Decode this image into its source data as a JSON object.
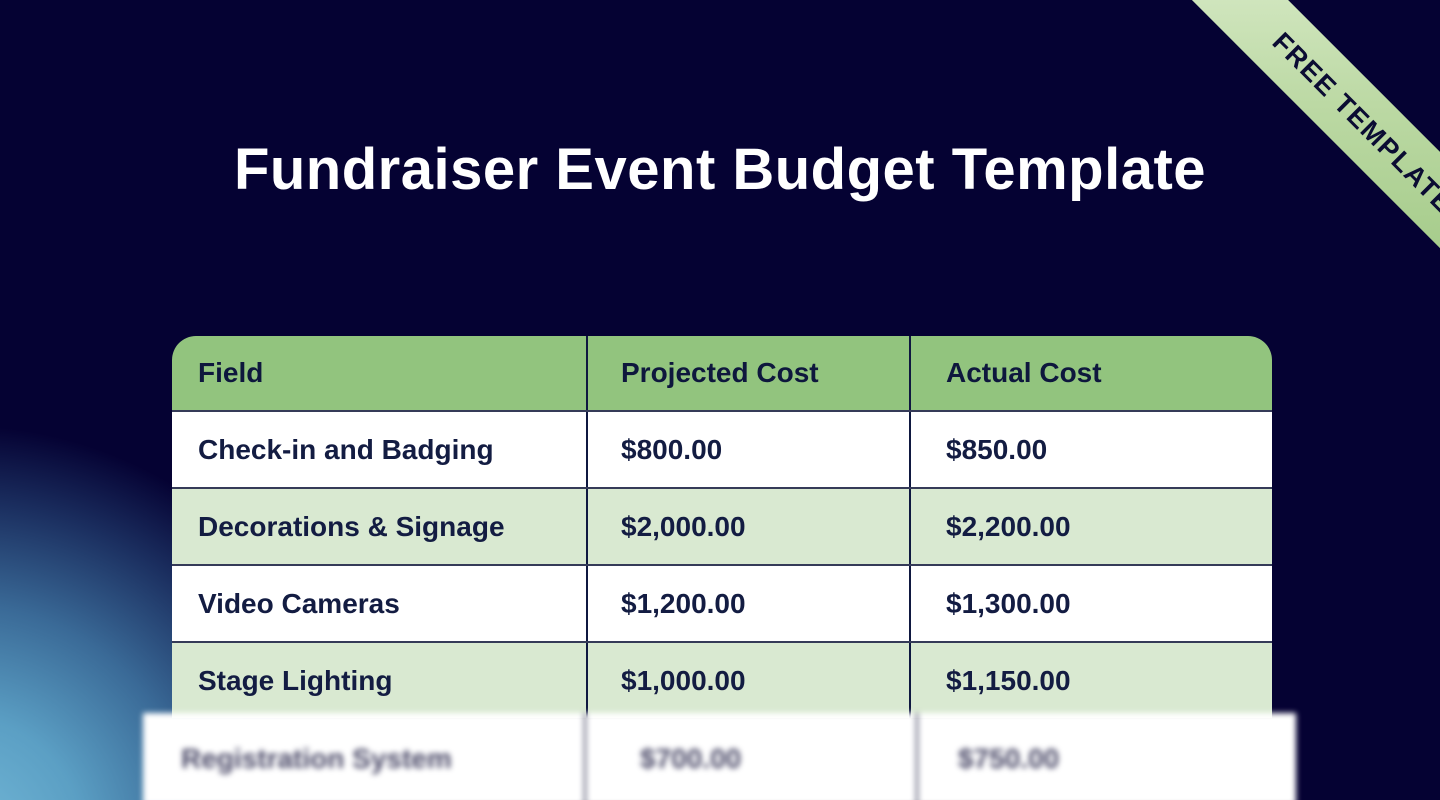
{
  "page": {
    "title": "Fundraiser Event Budget Template",
    "ribbon_label": "FREE TEMPLATE"
  },
  "table": {
    "columns": [
      "Field",
      "Projected Cost",
      "Actual Cost"
    ],
    "rows": [
      {
        "field": "Check-in and Badging",
        "projected": "$800.00",
        "actual": "$850.00"
      },
      {
        "field": "Decorations & Signage",
        "projected": "$2,000.00",
        "actual": "$2,200.00"
      },
      {
        "field": "Video Cameras",
        "projected": "$1,200.00",
        "actual": "$1,300.00"
      },
      {
        "field": "Stage Lighting",
        "projected": "$1,000.00",
        "actual": "$1,150.00"
      }
    ],
    "blurred_row": {
      "field": "Registration System",
      "projected": "$700.00",
      "actual": "$750.00"
    }
  },
  "colors": {
    "background_navy": "#050233",
    "header_green": "#92c47e",
    "row_green": "#d9e9d1",
    "row_white": "#ffffff",
    "text_navy": "#131c42",
    "ribbon_green_light": "#dcedcd",
    "ribbon_green_dark": "#9dc781",
    "glow_blue": "#74b9d8"
  }
}
